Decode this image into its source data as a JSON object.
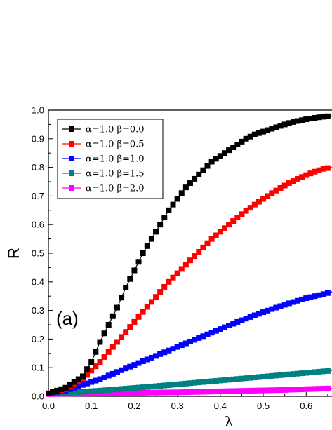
{
  "chart_data": {
    "type": "line",
    "xlabel": "λ",
    "ylabel": "R",
    "annotation": "(a)",
    "xlim": [
      0.0,
      0.66
    ],
    "ylim": [
      0.0,
      1.0
    ],
    "xticks": [
      "0.0",
      "0.1",
      "0.2",
      "0.3",
      "0.4",
      "0.5",
      "0.6"
    ],
    "yticks": [
      "0.0",
      "0.1",
      "0.2",
      "0.3",
      "0.4",
      "0.5",
      "0.6",
      "0.7",
      "0.8",
      "0.9",
      "1.0"
    ],
    "grid": false,
    "legend_position": "top-left",
    "marker": "square",
    "series": [
      {
        "name": "α=1.0 β=0.0",
        "color": "#000000",
        "x": [
          0.0,
          0.04,
          0.08,
          0.1,
          0.12,
          0.14,
          0.16,
          0.18,
          0.2,
          0.22,
          0.24,
          0.26,
          0.28,
          0.3,
          0.32,
          0.34,
          0.36,
          0.38,
          0.4,
          0.42,
          0.44,
          0.46,
          0.48,
          0.5,
          0.52,
          0.54,
          0.56,
          0.58,
          0.6,
          0.62,
          0.64,
          0.66
        ],
        "y": [
          0.01,
          0.03,
          0.07,
          0.12,
          0.19,
          0.25,
          0.31,
          0.38,
          0.44,
          0.5,
          0.55,
          0.6,
          0.65,
          0.69,
          0.73,
          0.76,
          0.79,
          0.82,
          0.84,
          0.86,
          0.88,
          0.9,
          0.915,
          0.925,
          0.935,
          0.945,
          0.955,
          0.962,
          0.968,
          0.973,
          0.977,
          0.98
        ]
      },
      {
        "name": "α=1.0 β=0.5",
        "color": "#ff0000",
        "x": [
          0.0,
          0.04,
          0.08,
          0.1,
          0.12,
          0.14,
          0.16,
          0.18,
          0.2,
          0.22,
          0.24,
          0.26,
          0.28,
          0.3,
          0.32,
          0.34,
          0.36,
          0.38,
          0.4,
          0.42,
          0.44,
          0.46,
          0.48,
          0.5,
          0.52,
          0.54,
          0.56,
          0.58,
          0.6,
          0.62,
          0.64,
          0.66
        ],
        "y": [
          0.01,
          0.025,
          0.06,
          0.09,
          0.12,
          0.155,
          0.19,
          0.225,
          0.26,
          0.295,
          0.33,
          0.365,
          0.4,
          0.43,
          0.46,
          0.49,
          0.52,
          0.55,
          0.575,
          0.6,
          0.625,
          0.648,
          0.67,
          0.69,
          0.71,
          0.728,
          0.745,
          0.76,
          0.773,
          0.785,
          0.795,
          0.8
        ]
      },
      {
        "name": "α=1.0 β=1.0",
        "color": "#0000ff",
        "x": [
          0.0,
          0.04,
          0.08,
          0.12,
          0.16,
          0.2,
          0.24,
          0.28,
          0.32,
          0.36,
          0.4,
          0.44,
          0.48,
          0.52,
          0.56,
          0.6,
          0.64,
          0.66
        ],
        "y": [
          0.01,
          0.02,
          0.04,
          0.06,
          0.085,
          0.11,
          0.135,
          0.16,
          0.185,
          0.21,
          0.235,
          0.26,
          0.283,
          0.305,
          0.325,
          0.343,
          0.357,
          0.365
        ]
      },
      {
        "name": "α=1.0 β=1.5",
        "color": "#008080",
        "x": [
          0.0,
          0.06,
          0.12,
          0.18,
          0.24,
          0.3,
          0.36,
          0.42,
          0.48,
          0.54,
          0.6,
          0.66
        ],
        "y": [
          0.01,
          0.014,
          0.02,
          0.027,
          0.034,
          0.042,
          0.05,
          0.058,
          0.066,
          0.074,
          0.082,
          0.09
        ]
      },
      {
        "name": "α=1.0 β=2.0",
        "color": "#ff00ff",
        "x": [
          0.0,
          0.06,
          0.12,
          0.18,
          0.24,
          0.3,
          0.36,
          0.42,
          0.48,
          0.54,
          0.6,
          0.66
        ],
        "y": [
          0.008,
          0.009,
          0.01,
          0.011,
          0.013,
          0.014,
          0.016,
          0.018,
          0.02,
          0.022,
          0.025,
          0.028
        ]
      }
    ]
  }
}
